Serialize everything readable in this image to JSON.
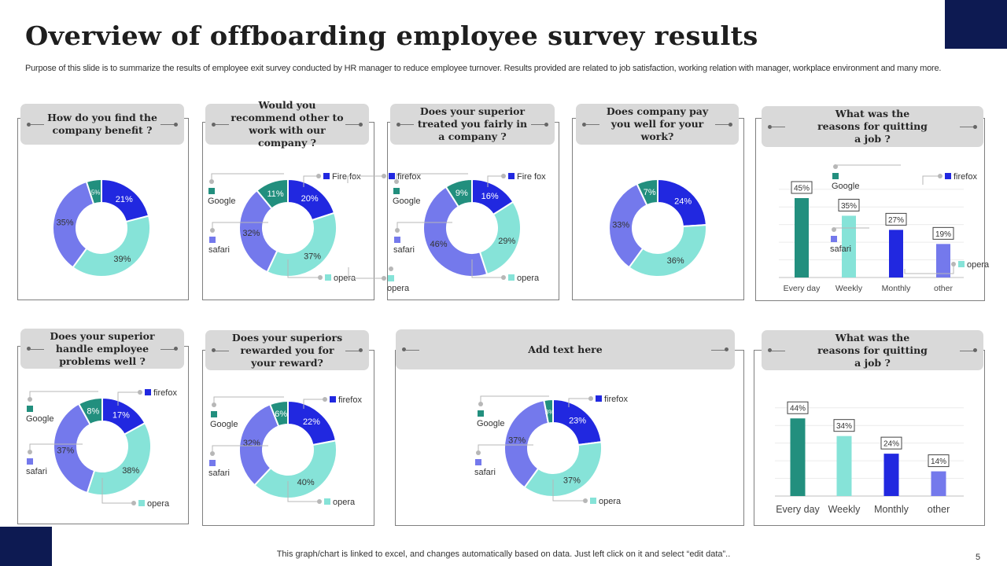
{
  "title": "Overview of offboarding employee survey results",
  "subtitle": "Purpose of this slide is to summarize the results of employee exit survey conducted by HR manager to reduce employee turnover. Results provided are related to job satisfaction, working relation with manager, workplace environment and many more.",
  "footer": "This graph/chart is linked to excel,  and changes automatically based on data. Just left click on it and select “edit data”..",
  "page_number": "5",
  "colors": {
    "firefox": "#2128e0",
    "opera": "#86e3d8",
    "safari": "#7479ec",
    "google": "#228f7e",
    "accent": "#0d1a52"
  },
  "panels": [
    {
      "title": "How do you find the company benefit ?"
    },
    {
      "title": "Would you recommend other to work with our company ?"
    },
    {
      "title": "Does your superior treated you fairly in a company ?"
    },
    {
      "title": "Does company pay you well for your work?"
    },
    {
      "title": "What was the reasons for quitting a job ?"
    },
    {
      "title": "Does your superior handle employee problems well ?"
    },
    {
      "title": "Does your superiors rewarded you for your reward?"
    },
    {
      "title": "Add text here"
    },
    {
      "title": "What was the reasons for quitting a job ?"
    }
  ],
  "chart_data": [
    {
      "type": "pie",
      "variant": "donut",
      "panel": 1,
      "slices": [
        {
          "key": "firefox",
          "value": 21
        },
        {
          "key": "opera",
          "value": 39
        },
        {
          "key": "safari",
          "value": 35
        },
        {
          "key": "google",
          "value": 5
        }
      ],
      "legend": []
    },
    {
      "type": "pie",
      "variant": "donut",
      "panel": 2,
      "slices": [
        {
          "key": "firefox",
          "value": 20
        },
        {
          "key": "opera",
          "value": 37
        },
        {
          "key": "safari",
          "value": 32
        },
        {
          "key": "google",
          "value": 11
        }
      ],
      "legend": [
        "Fire fox",
        "opera",
        "safari",
        "Google"
      ]
    },
    {
      "type": "pie",
      "variant": "donut",
      "panel": 3,
      "slices": [
        {
          "key": "firefox",
          "value": 16
        },
        {
          "key": "opera",
          "value": 29
        },
        {
          "key": "safari",
          "value": 46
        },
        {
          "key": "google",
          "value": 9
        }
      ],
      "legend": [
        "Fire fox",
        "opera",
        "safari",
        "Google"
      ]
    },
    {
      "type": "pie",
      "variant": "donut",
      "panel": 4,
      "slices": [
        {
          "key": "firefox",
          "value": 24
        },
        {
          "key": "opera",
          "value": 36
        },
        {
          "key": "safari",
          "value": 33
        },
        {
          "key": "google",
          "value": 7
        }
      ],
      "legend": []
    },
    {
      "type": "bar",
      "panel": 5,
      "categories": [
        "Every day",
        "Weekly",
        "Monthly",
        "other"
      ],
      "values": [
        45,
        35,
        27,
        19
      ],
      "bar_colors": [
        "google",
        "opera",
        "firefox",
        "safari"
      ],
      "ylim": [
        0,
        50
      ],
      "grid": true,
      "legend": [
        "firefox",
        "opera",
        "safari",
        "Google"
      ]
    },
    {
      "type": "pie",
      "variant": "donut",
      "panel": 6,
      "slices": [
        {
          "key": "firefox",
          "value": 17
        },
        {
          "key": "opera",
          "value": 38
        },
        {
          "key": "safari",
          "value": 37
        },
        {
          "key": "google",
          "value": 8
        }
      ],
      "legend": [
        "firefox",
        "opera",
        "safari",
        "Google"
      ]
    },
    {
      "type": "pie",
      "variant": "donut",
      "panel": 7,
      "slices": [
        {
          "key": "firefox",
          "value": 22
        },
        {
          "key": "opera",
          "value": 40
        },
        {
          "key": "safari",
          "value": 32
        },
        {
          "key": "google",
          "value": 6
        }
      ],
      "legend": [
        "firefox",
        "opera",
        "safari",
        "Google"
      ]
    },
    {
      "type": "pie",
      "variant": "donut",
      "panel": 8,
      "slices": [
        {
          "key": "firefox",
          "value": 23
        },
        {
          "key": "opera",
          "value": 37
        },
        {
          "key": "safari",
          "value": 37
        },
        {
          "key": "google",
          "value": 3
        }
      ],
      "legend": [
        "firefox",
        "opera",
        "safari",
        "Google"
      ]
    },
    {
      "type": "bar",
      "panel": 9,
      "categories": [
        "Every day",
        "Weekly",
        "Monthly",
        "other"
      ],
      "values": [
        44,
        34,
        24,
        14
      ],
      "bar_colors": [
        "google",
        "opera",
        "firefox",
        "safari"
      ],
      "ylim": [
        0,
        50
      ],
      "grid": true,
      "legend": []
    }
  ],
  "overlay_legend": [
    "firefox",
    "opera"
  ]
}
